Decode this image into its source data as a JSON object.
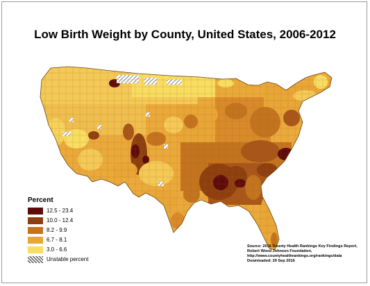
{
  "title": "Low Birth Weight by County, United States, 2006-2012",
  "legend": {
    "title": "Percent",
    "items": [
      {
        "label": "12.5 - 23.4",
        "color": "#5e0b0b"
      },
      {
        "label": "10.0 - 12.4",
        "color": "#8e3f0f"
      },
      {
        "label": "8.2 - 9.9",
        "color": "#c4741e"
      },
      {
        "label": "6.7 - 8.1",
        "color": "#e8a637"
      },
      {
        "label": "3.0 - 6.6",
        "color": "#f7dd61"
      },
      {
        "label": "Unstable percent",
        "color": "hatched"
      }
    ]
  },
  "source_lines": [
    "Source: 2016 County Health Rankings Key Findings Report,",
    "Robert Wood Johnson Foundation,",
    "http://www.countyhealthrankings.org/rankings/data",
    "Downloaded: 29 Sep 2016"
  ]
}
